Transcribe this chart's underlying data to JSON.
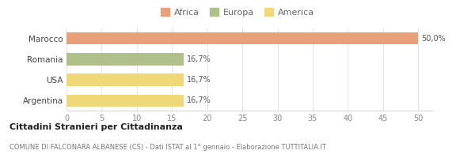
{
  "categories": [
    "Marocco",
    "Romania",
    "USA",
    "Argentina"
  ],
  "values": [
    50.0,
    16.7,
    16.7,
    16.7
  ],
  "bar_colors": [
    "#e8a07a",
    "#afc08a",
    "#f0d878",
    "#f0d878"
  ],
  "legend_items": [
    {
      "label": "Africa",
      "color": "#e8a07a"
    },
    {
      "label": "Europa",
      "color": "#afc08a"
    },
    {
      "label": "America",
      "color": "#f0d878"
    }
  ],
  "value_labels": [
    "50,0%",
    "16,7%",
    "16,7%",
    "16,7%"
  ],
  "xlim": [
    0,
    52
  ],
  "xticks": [
    0,
    5,
    10,
    15,
    20,
    25,
    30,
    35,
    40,
    45,
    50
  ],
  "title_bold": "Cittadini Stranieri per Cittadinanza",
  "subtitle": "COMUNE DI FALCONARA ALBANESE (CS) - Dati ISTAT al 1° gennaio - Elaborazione TUTTITALIA.IT",
  "background_color": "#ffffff",
  "grid_color": "#e0e0e0"
}
